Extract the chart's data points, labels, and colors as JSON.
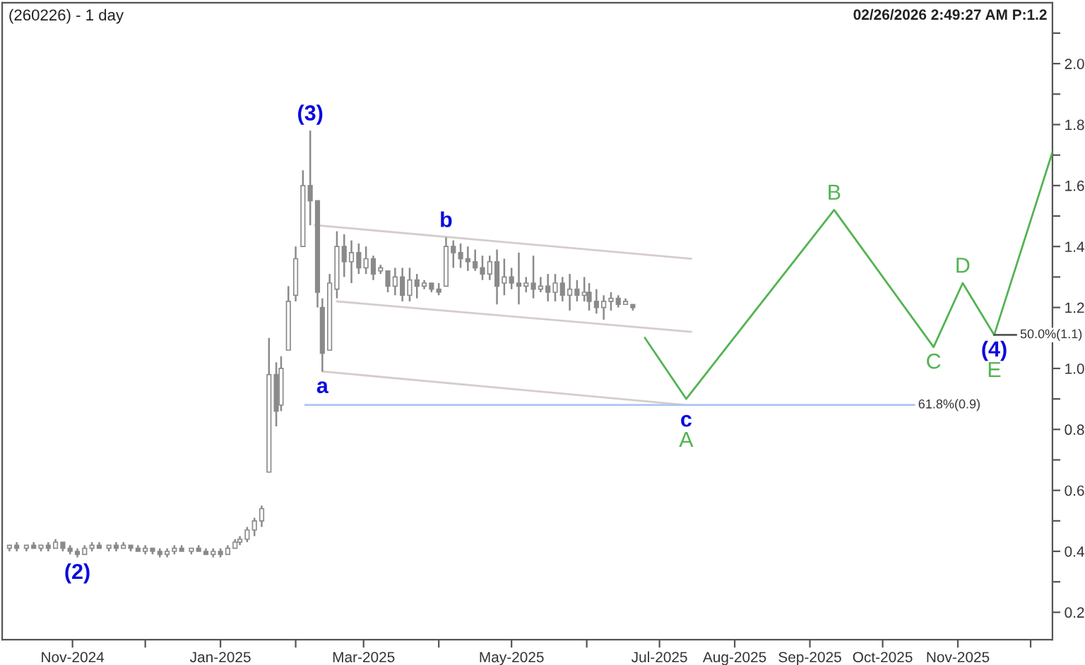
{
  "chart_data": {
    "type": "candlestick",
    "title": "(260226) - 1 day",
    "annotations": [
      "02/26/2026 2:49:27 AM P:1.2",
      {
        "text": "(2)",
        "x": "2024-11-03",
        "y": 0.38
      },
      {
        "text": "(3)",
        "x": "2025-02-07",
        "y": 1.78
      },
      {
        "text": "a",
        "x": "2025-02-12",
        "y": 0.99
      },
      {
        "text": "b",
        "x": "2025-04-04",
        "y": 1.43
      },
      {
        "text": "c",
        "x": "2025-07-12",
        "y": 0.88
      },
      {
        "text": "(4)",
        "x": "2025-11-16",
        "y": 1.11
      }
    ],
    "x": [
      "2024-10-06",
      "2024-10-09",
      "2024-10-13",
      "2024-10-16",
      "2024-10-19",
      "2024-10-22",
      "2024-10-25",
      "2024-10-28",
      "2024-10-31",
      "2024-11-03",
      "2024-11-06",
      "2024-11-09",
      "2024-11-12",
      "2024-11-16",
      "2024-11-19",
      "2024-11-22",
      "2024-11-25",
      "2024-11-28",
      "2024-12-01",
      "2024-12-04",
      "2024-12-07",
      "2024-12-10",
      "2024-12-13",
      "2024-12-16",
      "2024-12-20",
      "2024-12-23",
      "2024-12-26",
      "2024-12-29",
      "2025-01-01",
      "2025-01-04",
      "2025-01-07",
      "2025-01-09",
      "2025-01-12",
      "2025-01-15",
      "2025-01-18",
      "2025-01-21",
      "2025-01-24",
      "2025-01-26",
      "2025-01-29",
      "2025-02-01",
      "2025-02-04",
      "2025-02-07",
      "2025-02-10",
      "2025-02-12",
      "2025-02-15",
      "2025-02-18",
      "2025-02-21",
      "2025-02-24",
      "2025-02-27",
      "2025-03-02",
      "2025-03-05",
      "2025-03-08",
      "2025-03-11",
      "2025-03-14",
      "2025-03-17",
      "2025-03-20",
      "2025-03-23",
      "2025-03-26",
      "2025-03-29",
      "2025-04-01",
      "2025-04-04",
      "2025-04-07",
      "2025-04-10",
      "2025-04-13",
      "2025-04-16",
      "2025-04-19",
      "2025-04-22",
      "2025-04-25",
      "2025-04-28",
      "2025-05-01",
      "2025-05-04",
      "2025-05-07",
      "2025-05-10",
      "2025-05-13",
      "2025-05-16",
      "2025-05-19",
      "2025-05-22",
      "2025-05-25",
      "2025-05-28",
      "2025-05-31",
      "2025-06-02",
      "2025-06-05",
      "2025-06-08",
      "2025-06-11",
      "2025-06-14",
      "2025-06-17",
      "2025-06-20"
    ],
    "ohlc": [
      [
        0.41,
        0.42,
        0.4,
        0.42
      ],
      [
        0.42,
        0.43,
        0.4,
        0.41
      ],
      [
        0.41,
        0.42,
        0.4,
        0.42
      ],
      [
        0.42,
        0.43,
        0.41,
        0.41
      ],
      [
        0.41,
        0.42,
        0.4,
        0.42
      ],
      [
        0.42,
        0.43,
        0.4,
        0.41
      ],
      [
        0.41,
        0.44,
        0.41,
        0.43
      ],
      [
        0.43,
        0.43,
        0.4,
        0.41
      ],
      [
        0.41,
        0.42,
        0.39,
        0.4
      ],
      [
        0.4,
        0.41,
        0.38,
        0.39
      ],
      [
        0.39,
        0.42,
        0.39,
        0.41
      ],
      [
        0.41,
        0.43,
        0.4,
        0.42
      ],
      [
        0.42,
        0.43,
        0.41,
        0.41
      ],
      [
        0.41,
        0.42,
        0.4,
        0.42
      ],
      [
        0.42,
        0.43,
        0.4,
        0.41
      ],
      [
        0.41,
        0.43,
        0.41,
        0.42
      ],
      [
        0.42,
        0.42,
        0.4,
        0.41
      ],
      [
        0.41,
        0.42,
        0.4,
        0.4
      ],
      [
        0.4,
        0.42,
        0.39,
        0.41
      ],
      [
        0.41,
        0.41,
        0.39,
        0.4
      ],
      [
        0.4,
        0.41,
        0.38,
        0.39
      ],
      [
        0.39,
        0.41,
        0.38,
        0.4
      ],
      [
        0.4,
        0.42,
        0.39,
        0.41
      ],
      [
        0.41,
        0.42,
        0.4,
        0.4
      ],
      [
        0.4,
        0.41,
        0.39,
        0.41
      ],
      [
        0.41,
        0.42,
        0.4,
        0.4
      ],
      [
        0.4,
        0.41,
        0.39,
        0.39
      ],
      [
        0.39,
        0.41,
        0.38,
        0.4
      ],
      [
        0.4,
        0.41,
        0.38,
        0.39
      ],
      [
        0.39,
        0.42,
        0.39,
        0.41
      ],
      [
        0.41,
        0.44,
        0.41,
        0.43
      ],
      [
        0.43,
        0.45,
        0.42,
        0.44
      ],
      [
        0.44,
        0.48,
        0.43,
        0.47
      ],
      [
        0.47,
        0.51,
        0.45,
        0.5
      ],
      [
        0.5,
        0.55,
        0.48,
        0.54
      ],
      [
        0.66,
        1.1,
        0.66,
        0.98
      ],
      [
        0.98,
        1.02,
        0.81,
        0.86
      ],
      [
        0.88,
        1.04,
        0.86,
        1.0
      ],
      [
        1.06,
        1.27,
        1.06,
        1.22
      ],
      [
        1.24,
        1.4,
        1.22,
        1.36
      ],
      [
        1.4,
        1.65,
        1.4,
        1.6
      ],
      [
        1.6,
        1.78,
        1.47,
        1.55
      ],
      [
        1.55,
        1.55,
        1.2,
        1.25
      ],
      [
        1.2,
        1.23,
        0.99,
        1.05
      ],
      [
        1.06,
        1.31,
        1.06,
        1.28
      ],
      [
        1.26,
        1.45,
        1.23,
        1.4
      ],
      [
        1.4,
        1.44,
        1.3,
        1.35
      ],
      [
        1.35,
        1.42,
        1.28,
        1.38
      ],
      [
        1.38,
        1.41,
        1.31,
        1.33
      ],
      [
        1.33,
        1.4,
        1.31,
        1.36
      ],
      [
        1.36,
        1.37,
        1.29,
        1.31
      ],
      [
        1.32,
        1.34,
        1.31,
        1.33
      ],
      [
        1.32,
        1.32,
        1.25,
        1.27
      ],
      [
        1.27,
        1.33,
        1.24,
        1.3
      ],
      [
        1.3,
        1.33,
        1.22,
        1.24
      ],
      [
        1.24,
        1.33,
        1.22,
        1.29
      ],
      [
        1.29,
        1.31,
        1.23,
        1.27
      ],
      [
        1.27,
        1.29,
        1.26,
        1.28
      ],
      [
        1.28,
        1.28,
        1.25,
        1.26
      ],
      [
        1.26,
        1.28,
        1.24,
        1.25
      ],
      [
        1.27,
        1.43,
        1.27,
        1.4
      ],
      [
        1.4,
        1.42,
        1.33,
        1.38
      ],
      [
        1.38,
        1.41,
        1.33,
        1.36
      ],
      [
        1.36,
        1.4,
        1.32,
        1.35
      ],
      [
        1.35,
        1.39,
        1.32,
        1.33
      ],
      [
        1.33,
        1.37,
        1.29,
        1.31
      ],
      [
        1.31,
        1.37,
        1.29,
        1.35
      ],
      [
        1.35,
        1.39,
        1.21,
        1.27
      ],
      [
        1.28,
        1.36,
        1.24,
        1.3
      ],
      [
        1.3,
        1.33,
        1.26,
        1.28
      ],
      [
        1.28,
        1.38,
        1.21,
        1.27
      ],
      [
        1.27,
        1.3,
        1.25,
        1.28
      ],
      [
        1.28,
        1.37,
        1.23,
        1.26
      ],
      [
        1.26,
        1.3,
        1.25,
        1.27
      ],
      [
        1.27,
        1.31,
        1.22,
        1.25
      ],
      [
        1.25,
        1.31,
        1.22,
        1.28
      ],
      [
        1.28,
        1.3,
        1.22,
        1.24
      ],
      [
        1.24,
        1.31,
        1.19,
        1.26
      ],
      [
        1.26,
        1.29,
        1.22,
        1.24
      ],
      [
        1.24,
        1.3,
        1.22,
        1.25
      ],
      [
        1.25,
        1.28,
        1.19,
        1.22
      ],
      [
        1.22,
        1.26,
        1.18,
        1.2
      ],
      [
        1.2,
        1.24,
        1.16,
        1.22
      ],
      [
        1.22,
        1.25,
        1.19,
        1.23
      ],
      [
        1.23,
        1.24,
        1.2,
        1.21
      ],
      [
        1.21,
        1.23,
        1.21,
        1.22
      ],
      [
        1.21,
        1.21,
        1.19,
        1.2
      ]
    ],
    "color": "#8a8a8a",
    "series": [
      {
        "type": "line",
        "x": [
          "2025-02-09",
          "2025-07-14"
        ],
        "values": [
          1.47,
          1.36
        ],
        "color": "#d6cccc"
      },
      {
        "type": "line",
        "x": [
          "2025-02-18",
          "2025-07-14"
        ],
        "values": [
          1.22,
          1.12
        ],
        "color": "#d6cccc"
      },
      {
        "type": "line",
        "x": [
          "2025-02-12",
          "2025-07-12"
        ],
        "values": [
          0.99,
          0.88
        ],
        "color": "#d6cccc"
      },
      {
        "type": "line",
        "name": "61.8%(0.9)",
        "x": [
          "2025-02-05",
          "2025-10-14"
        ],
        "values": [
          0.88,
          0.88
        ],
        "color": "#aac8f0"
      },
      {
        "type": "line",
        "x": [
          "2025-06-25",
          "2025-07-12",
          "2025-09-11",
          "2025-10-22",
          "2025-11-03",
          "2025-11-16",
          "2025-12-10"
        ],
        "values": [
          1.1,
          0.9,
          1.52,
          1.07,
          1.28,
          1.11,
          1.71
        ],
        "value_labels": [
          null,
          "A",
          "B",
          "C",
          "D",
          "E",
          null
        ],
        "color": "#52b452"
      },
      {
        "type": "line",
        "name": "50.0%(1.1)",
        "x": [
          "2025-11-16",
          "2025-11-25"
        ],
        "values": [
          1.11,
          1.11
        ],
        "color": "#555555"
      }
    ],
    "xlim": [
      "2024-10-03",
      "2025-12-10"
    ],
    "ylim": [
      0.11,
      2.2
    ],
    "xticks": [
      {
        "value": "2024-11-01",
        "label": "Nov-2024"
      },
      {
        "value": "2024-12-01",
        "label": null
      },
      {
        "value": "2025-01-01",
        "label": "Jan-2025"
      },
      {
        "value": "2025-02-01",
        "label": null
      },
      {
        "value": "2025-03-01",
        "label": "Mar-2025"
      },
      {
        "value": "2025-04-01",
        "label": null
      },
      {
        "value": "2025-05-01",
        "label": "May-2025"
      },
      {
        "value": "2025-06-01",
        "label": null
      },
      {
        "value": "2025-07-01",
        "label": "Jul-2025"
      },
      {
        "value": "2025-08-01",
        "label": "Aug-2025"
      },
      {
        "value": "2025-09-01",
        "label": "Sep-2025"
      },
      {
        "value": "2025-10-01",
        "label": "Oct-2025"
      },
      {
        "value": "2025-11-01",
        "label": "Nov-2025"
      },
      {
        "value": "2025-12-01",
        "label": null
      }
    ],
    "yticks": [
      0.2,
      {
        "value": 0.3,
        "label": null
      },
      0.4,
      {
        "value": 0.5,
        "label": null
      },
      0.6,
      {
        "value": 0.7,
        "label": null
      },
      0.8,
      {
        "value": 0.9,
        "label": null
      },
      {
        "value": 1.0,
        "label": "1.0"
      },
      {
        "value": 1.1,
        "label": null
      },
      1.2,
      {
        "value": 1.3,
        "label": null
      },
      1.4,
      {
        "value": 1.5,
        "label": null
      },
      1.6,
      {
        "value": 1.7,
        "label": null
      },
      1.8,
      {
        "value": 1.9,
        "label": null
      },
      {
        "value": 2.0,
        "label": "2.0"
      },
      {
        "value": 2.1,
        "label": null
      }
    ]
  }
}
